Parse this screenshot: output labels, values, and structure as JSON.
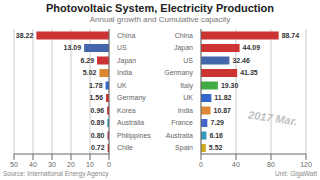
{
  "chart_data": [
    {
      "type": "bar",
      "orientation": "horizontal",
      "title": "Photovoltaic System, Electricity Production",
      "subtitle": "Annual growth and Cumulative capacity",
      "annotations": [
        "2017 Mar.",
        "Source: International Energy Agency",
        "Unit: GigaWatt"
      ],
      "categories": [
        "China",
        "US",
        "Japan",
        "India",
        "UK",
        "Germany",
        "Korea",
        "Australia",
        "Philippines",
        "Chile"
      ],
      "values": [
        38.22,
        13.09,
        6.29,
        5.02,
        1.78,
        1.56,
        0.96,
        0.89,
        0.8,
        0.72
      ],
      "value_labels": [
        "38.22",
        "13.09",
        "6.29",
        "5.02",
        "1.78",
        "1.56",
        "0.96",
        "0.89",
        "0.80",
        "0.72"
      ],
      "colors": [
        "#cc3333",
        "#4466aa",
        "#cc3333",
        "#dd8833",
        "#3366cc",
        "#cc3333",
        "#cc2222",
        "#3399bb",
        "#bb3355",
        "#cc3333"
      ],
      "xlim": [
        50,
        0
      ],
      "xticks": [
        50,
        40,
        30,
        20,
        10,
        0
      ],
      "grid": true,
      "data_labels": true
    },
    {
      "type": "bar",
      "orientation": "horizontal",
      "categories": [
        "China",
        "Japan",
        "US",
        "Germany",
        "Italy",
        "UK",
        "India",
        "France",
        "Australia",
        "Spain"
      ],
      "values": [
        88.74,
        44.09,
        32.46,
        41.35,
        19.3,
        11.82,
        10.87,
        7.29,
        6.16,
        5.52
      ],
      "value_labels": [
        "88.74",
        "44.09",
        "32.46",
        "41.35",
        "19.30",
        "11.82",
        "10.87",
        "7.29",
        "6.16",
        "5.52"
      ],
      "colors": [
        "#cc3333",
        "#cc3333",
        "#4466aa",
        "#cc3333",
        "#44aa44",
        "#3366cc",
        "#dd8833",
        "#4466cc",
        "#3399bb",
        "#ccaa22"
      ],
      "xlim": [
        0,
        120
      ],
      "xticks": [
        0,
        40,
        80,
        120
      ],
      "grid": true,
      "data_labels": true
    }
  ]
}
